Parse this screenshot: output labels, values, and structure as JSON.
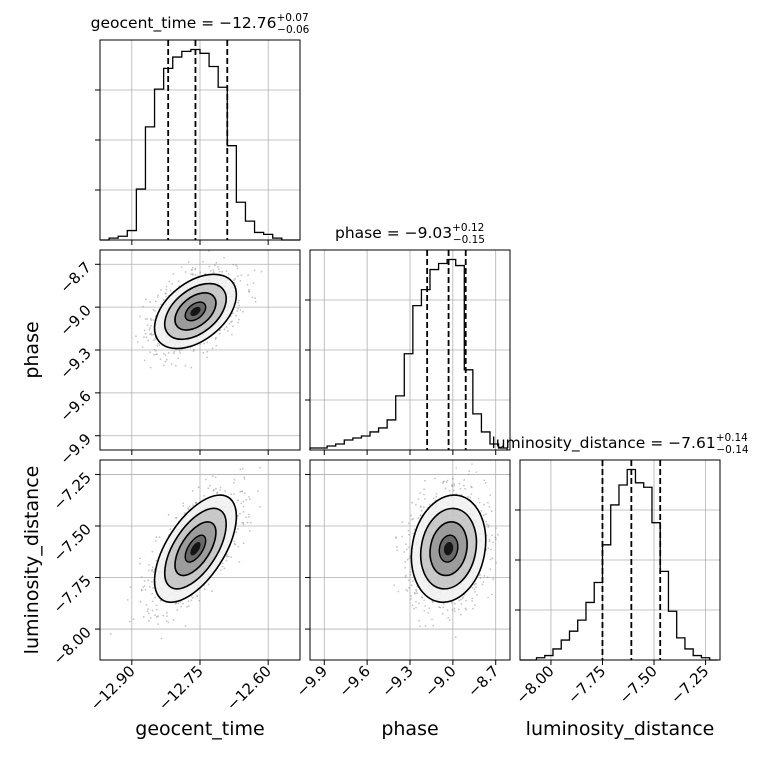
{
  "chart_data": {
    "type": "corner",
    "grid": true,
    "parameters": [
      {
        "name": "geocent_time",
        "xlabel": "geocent_time",
        "range": [
          -12.97,
          -12.53
        ],
        "ticks": [
          -12.9,
          -12.75,
          -12.6
        ],
        "tick_labels": [
          "−12.90",
          "−12.75",
          "−12.60"
        ],
        "title_prefix": "geocent_time = ",
        "median_label": "−12.76",
        "plus_label": "+0.07",
        "minus_label": "−0.06",
        "quantiles": [
          -12.82,
          -12.76,
          -12.69
        ],
        "histogram": {
          "bin_edges": [
            -12.97,
            -12.95,
            -12.93,
            -12.91,
            -12.89,
            -12.87,
            -12.85,
            -12.83,
            -12.81,
            -12.79,
            -12.77,
            -12.75,
            -12.73,
            -12.71,
            -12.69,
            -12.67,
            -12.65,
            -12.63,
            -12.61,
            -12.59,
            -12.57,
            -12.55,
            -12.53
          ],
          "counts": [
            0,
            1,
            2,
            5,
            27,
            60,
            80,
            91,
            97,
            100,
            101,
            99,
            92,
            81,
            50,
            20,
            10,
            4,
            3,
            1,
            0,
            0
          ]
        }
      },
      {
        "name": "phase",
        "xlabel": "phase",
        "ylabel": "phase",
        "range": [
          -10.0,
          -8.6
        ],
        "ticks": [
          -9.9,
          -9.6,
          -9.3,
          -9.0,
          -8.7
        ],
        "tick_labels": [
          "−9.9",
          "−9.6",
          "−9.3",
          "−9.0",
          "−8.7"
        ],
        "title_prefix": "phase = ",
        "median_label": "−9.03",
        "plus_label": "+0.12",
        "minus_label": "−0.15",
        "quantiles": [
          -9.18,
          -9.03,
          -8.91
        ],
        "histogram": {
          "bin_edges": [
            -10.0,
            -9.94,
            -9.88,
            -9.82,
            -9.76,
            -9.7,
            -9.64,
            -9.58,
            -9.52,
            -9.46,
            -9.4,
            -9.34,
            -9.28,
            -9.22,
            -9.16,
            -9.1,
            -9.04,
            -8.98,
            -8.92,
            -8.86,
            -8.8,
            -8.74,
            -8.68,
            -8.62
          ],
          "counts": [
            1,
            1,
            2,
            3,
            5,
            6,
            7,
            9,
            11,
            15,
            27,
            48,
            72,
            80,
            90,
            93,
            95,
            92,
            40,
            18,
            9,
            3,
            1
          ]
        }
      },
      {
        "name": "luminosity_distance",
        "xlabel": "luminosity_distance",
        "ylabel": "luminosity_distance",
        "range": [
          -8.15,
          -7.18
        ],
        "ticks": [
          -8.0,
          -7.75,
          -7.5,
          -7.25
        ],
        "tick_labels": [
          "−8.00",
          "−7.75",
          "−7.50",
          "−7.25"
        ],
        "title_prefix": "luminosity_distance = ",
        "median_label": "−7.61",
        "plus_label": "+0.14",
        "minus_label": "−0.14",
        "quantiles": [
          -7.75,
          -7.61,
          -7.47
        ],
        "histogram": {
          "bin_edges": [
            -8.15,
            -8.11,
            -8.07,
            -8.03,
            -7.99,
            -7.95,
            -7.91,
            -7.87,
            -7.83,
            -7.79,
            -7.75,
            -7.71,
            -7.67,
            -7.63,
            -7.59,
            -7.55,
            -7.51,
            -7.47,
            -7.43,
            -7.39,
            -7.35,
            -7.31,
            -7.27,
            -7.23,
            -7.19
          ],
          "counts": [
            0,
            0,
            1,
            2,
            5,
            9,
            13,
            18,
            26,
            35,
            52,
            70,
            79,
            86,
            80,
            78,
            62,
            40,
            22,
            10,
            5,
            2,
            1,
            0
          ]
        }
      }
    ],
    "pairs": [
      {
        "x": "geocent_time",
        "y": "phase",
        "center": [
          -12.76,
          -9.03
        ],
        "sigma": [
          0.045,
          0.13
        ],
        "rho": 0.45,
        "contour_sigma_levels": [
          0.5,
          1.0,
          1.5,
          2.0
        ]
      },
      {
        "x": "geocent_time",
        "y": "luminosity_distance",
        "center": [
          -12.76,
          -7.61
        ],
        "sigma": [
          0.045,
          0.13
        ],
        "rho": 0.6,
        "contour_sigma_levels": [
          0.5,
          1.0,
          1.5,
          2.0
        ]
      },
      {
        "x": "phase",
        "y": "luminosity_distance",
        "center": [
          -9.03,
          -7.61
        ],
        "sigma": [
          0.13,
          0.13
        ],
        "rho": 0.15,
        "contour_sigma_levels": [
          0.5,
          1.0,
          1.5,
          2.0
        ]
      }
    ],
    "colors": {
      "line": "#000000",
      "grid": "#b0b0b0",
      "points": "#7f7f7f",
      "density": "#000000"
    }
  }
}
